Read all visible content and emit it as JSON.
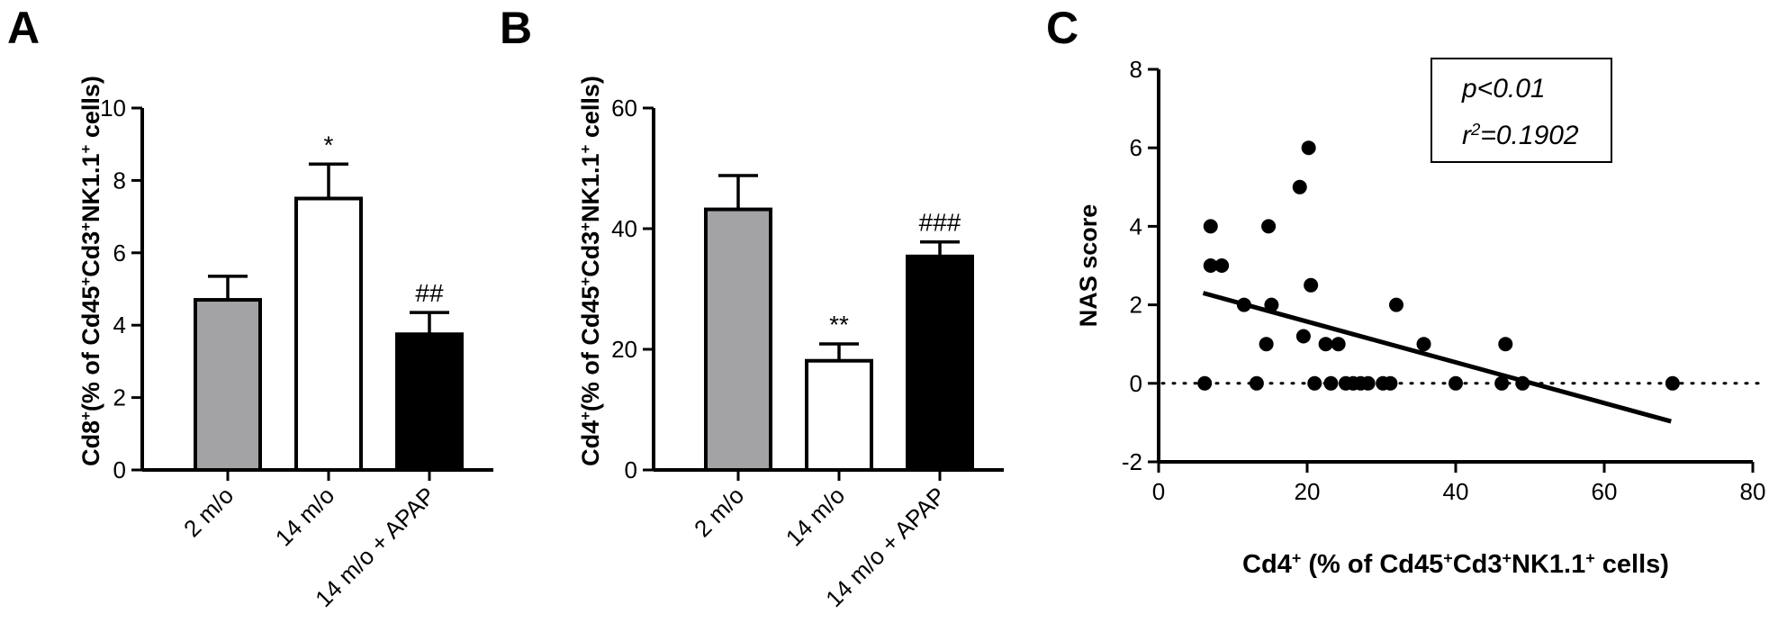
{
  "chart_data": [
    {
      "panel": "A",
      "type": "bar",
      "categories": [
        "2 m/o",
        "14 m/o",
        "14 m/o + APAP"
      ],
      "values": [
        4.7,
        7.5,
        3.75
      ],
      "errors": [
        0.65,
        0.95,
        0.6
      ],
      "significance": [
        "",
        "*",
        "##"
      ],
      "bar_colors": [
        "#a3a3a6",
        "#ffffff",
        "#000000"
      ],
      "ylabel_parts": [
        {
          "t": "Cd8",
          "sup": false
        },
        {
          "t": "+",
          "sup": true
        },
        {
          "t": "(% of Cd45",
          "sup": false
        },
        {
          "t": "+",
          "sup": true
        },
        {
          "t": "Cd3",
          "sup": false
        },
        {
          "t": "+",
          "sup": true
        },
        {
          "t": "NK1.1",
          "sup": false
        },
        {
          "t": "+",
          "sup": true
        },
        {
          "t": " cells)",
          "sup": false
        }
      ],
      "ylim": [
        0,
        10
      ],
      "yticks": [
        "0",
        "2",
        "4",
        "6",
        "8",
        "10"
      ]
    },
    {
      "panel": "B",
      "type": "bar",
      "categories": [
        "2 m/o",
        "14 m/o",
        "14 m/o + APAP"
      ],
      "values": [
        43.2,
        18.1,
        35.4
      ],
      "errors": [
        5.6,
        2.8,
        2.4
      ],
      "significance": [
        "",
        "**",
        "###"
      ],
      "bar_colors": [
        "#a3a3a6",
        "#ffffff",
        "#000000"
      ],
      "ylabel_parts": [
        {
          "t": "Cd4",
          "sup": false
        },
        {
          "t": "+",
          "sup": true
        },
        {
          "t": "(% of Cd45",
          "sup": false
        },
        {
          "t": "+",
          "sup": true
        },
        {
          "t": "Cd3",
          "sup": false
        },
        {
          "t": "+",
          "sup": true
        },
        {
          "t": "NK1.1",
          "sup": false
        },
        {
          "t": "+",
          "sup": true
        },
        {
          "t": " cells)",
          "sup": false
        }
      ],
      "ylim": [
        0,
        60
      ],
      "yticks": [
        "0",
        "20",
        "40",
        "60"
      ]
    },
    {
      "panel": "C",
      "type": "scatter",
      "points": [
        [
          6.2,
          0
        ],
        [
          7,
          4
        ],
        [
          7,
          3
        ],
        [
          8.5,
          3
        ],
        [
          11.5,
          2
        ],
        [
          13.2,
          0
        ],
        [
          14.8,
          4
        ],
        [
          14.5,
          1
        ],
        [
          15.2,
          2
        ],
        [
          19,
          5
        ],
        [
          19.5,
          1.2
        ],
        [
          20.2,
          6
        ],
        [
          20.5,
          2.5
        ],
        [
          21,
          0
        ],
        [
          22.5,
          1
        ],
        [
          23.2,
          0
        ],
        [
          24.2,
          1
        ],
        [
          25.2,
          0
        ],
        [
          26.2,
          0
        ],
        [
          27.2,
          0
        ],
        [
          28.2,
          0
        ],
        [
          30.2,
          0
        ],
        [
          31.2,
          0
        ],
        [
          32,
          2
        ],
        [
          35.7,
          1
        ],
        [
          40,
          0
        ],
        [
          46.2,
          0
        ],
        [
          46.7,
          1
        ],
        [
          49,
          0
        ],
        [
          69.2,
          0
        ]
      ],
      "regression": {
        "x": [
          6,
          69
        ],
        "y": [
          2.3,
          -0.97
        ]
      },
      "reference_line_y": 0,
      "xlim": [
        0,
        80
      ],
      "ylim": [
        -2,
        8
      ],
      "xticks": [
        "0",
        "20",
        "40",
        "60",
        "80"
      ],
      "yticks": [
        "-2",
        "0",
        "2",
        "4",
        "6",
        "8"
      ],
      "ylabel": "NAS score",
      "xlabel_parts": [
        {
          "t": "Cd4",
          "sup": false
        },
        {
          "t": "+",
          "sup": true
        },
        {
          "t": " (% of Cd45",
          "sup": false
        },
        {
          "t": "+",
          "sup": true
        },
        {
          "t": "Cd3",
          "sup": false
        },
        {
          "t": "+",
          "sup": true
        },
        {
          "t": "NK1.1",
          "sup": false
        },
        {
          "t": "+",
          "sup": true
        },
        {
          "t": " cells)",
          "sup": false
        }
      ],
      "stats_box": {
        "p_text": "p<0.01",
        "r_base": "r",
        "r_exp": "2",
        "r_value": "=0.1902"
      }
    }
  ]
}
